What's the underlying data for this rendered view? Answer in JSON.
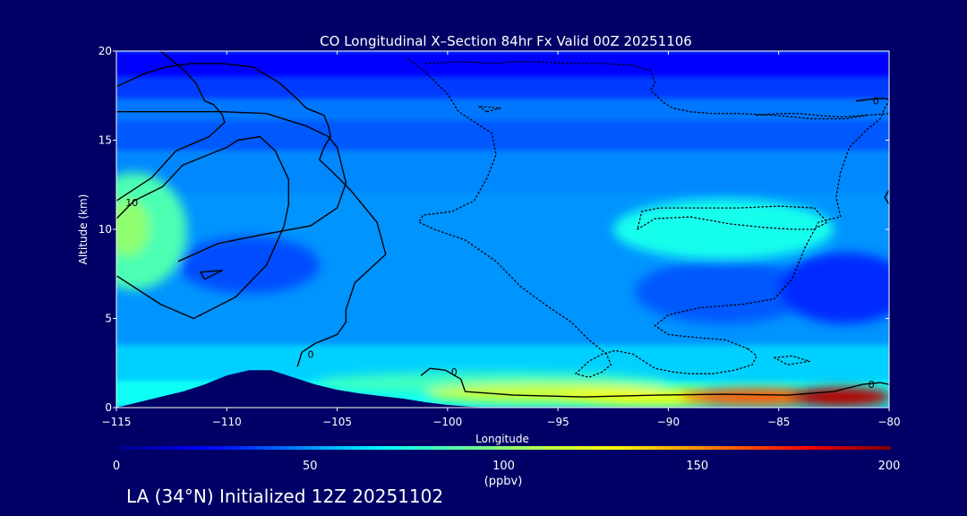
{
  "chart_data": {
    "type": "heatmap",
    "title": "CO Longitudinal X–Section 84hr  Fx Valid 00Z 20251106",
    "xlabel": "Longitude",
    "ylabel": "Altitude (km)",
    "xlim": [
      -115,
      -80
    ],
    "ylim": [
      0,
      20
    ],
    "x_ticks": [
      -115,
      -110,
      -105,
      -100,
      -95,
      -90,
      -85,
      -80
    ],
    "x_tick_labels": [
      "−115",
      "−110",
      "−105",
      "−100",
      "−95",
      "−90",
      "−85",
      "−80"
    ],
    "y_ticks": [
      0,
      5,
      10,
      15,
      20
    ],
    "y_tick_labels": [
      "0",
      "5",
      "10",
      "15",
      "20"
    ],
    "colorbar": {
      "min": 0,
      "max": 200,
      "ticks": [
        0,
        50,
        100,
        150,
        200
      ],
      "tick_labels": [
        "0",
        "50",
        "100",
        "150",
        "200"
      ],
      "label": "(ppbv)"
    },
    "contour_labels": [
      {
        "lon": -114.3,
        "alt": 11.5,
        "text": "10"
      },
      {
        "lon": -106.2,
        "alt": 3.0,
        "text": "0"
      },
      {
        "lon": -99.7,
        "alt": 2.0,
        "text": "0"
      },
      {
        "lon": -80.8,
        "alt": 1.3,
        "text": "0"
      },
      {
        "lon": -80.6,
        "alt": 17.2,
        "text": "0"
      }
    ],
    "terrain": {
      "lon": [
        -115,
        -114,
        -113,
        -112,
        -111,
        -110,
        -109,
        -108,
        -107,
        -106,
        -105,
        -104,
        -103,
        -102,
        -101,
        -100,
        -99,
        -98,
        -97,
        -96,
        -95,
        -80
      ],
      "alt": [
        0,
        0.3,
        0.6,
        0.9,
        1.3,
        1.8,
        2.1,
        2.1,
        1.7,
        1.3,
        1.0,
        0.8,
        0.65,
        0.5,
        0.3,
        0.15,
        0.05,
        0,
        0,
        0,
        0,
        0
      ]
    },
    "bands": [
      {
        "alt": [
          18.5,
          20
        ],
        "value": 25
      },
      {
        "alt": [
          17.3,
          18.5
        ],
        "value": 35
      },
      {
        "alt": [
          16.1,
          17.3
        ],
        "value": 45
      },
      {
        "alt": [
          14.4,
          16.1
        ],
        "value": 40
      },
      {
        "alt": [
          12.0,
          14.4
        ],
        "value": 48
      },
      {
        "alt": [
          3.5,
          12.0
        ],
        "value": 50
      },
      {
        "alt": [
          1.5,
          3.5
        ],
        "value": 60
      },
      {
        "alt": [
          0,
          1.5
        ],
        "value": 70
      }
    ],
    "blobs": [
      {
        "lon": -114.2,
        "alt": 9.9,
        "rlon": 2.4,
        "ralt": 3.3,
        "value": 85
      },
      {
        "lon": -114.5,
        "alt": 10.1,
        "rlon": 1.0,
        "ralt": 1.6,
        "value": 100
      },
      {
        "lon": -109.0,
        "alt": 8.0,
        "rlon": 3.2,
        "ralt": 1.6,
        "value": 38
      },
      {
        "lon": -87.5,
        "alt": 10.0,
        "rlon": 5.0,
        "ralt": 1.7,
        "value": 72
      },
      {
        "lon": -87.5,
        "alt": 6.5,
        "rlon": 4.0,
        "ralt": 1.8,
        "value": 40
      },
      {
        "lon": -82.0,
        "alt": 6.7,
        "rlon": 3.0,
        "ralt": 2.0,
        "value": 32
      },
      {
        "lon": -98.0,
        "alt": 1.4,
        "rlon": 8.0,
        "ralt": 0.6,
        "value": 82
      },
      {
        "lon": -95.5,
        "alt": 0.8,
        "rlon": 5.5,
        "ralt": 0.55,
        "value": 115
      },
      {
        "lon": -90.5,
        "alt": 0.6,
        "rlon": 4.5,
        "ralt": 0.5,
        "value": 125
      },
      {
        "lon": -86.0,
        "alt": 0.6,
        "rlon": 3.5,
        "ralt": 0.5,
        "value": 160
      },
      {
        "lon": -82.2,
        "alt": 0.6,
        "rlon": 2.3,
        "ralt": 0.55,
        "value": 190
      }
    ],
    "solid_contours": [
      {
        "lon": [
          -113.0,
          -112.0,
          -111.4,
          -111.2,
          -111.0,
          -110.6,
          -110.2,
          -110.1,
          -110.8,
          -112.3,
          -113.4,
          -115.0
        ],
        "alt": [
          20.0,
          19.0,
          18.2,
          17.7,
          17.2,
          17.0,
          16.4,
          16.0,
          15.2,
          14.4,
          12.9,
          11.6
        ]
      },
      {
        "lon": [
          -115.0,
          -113.8,
          -112.8,
          -111.6,
          -110.2,
          -108.8,
          -107.6,
          -106.8,
          -106.4,
          -106.0,
          -105.6,
          -105.4,
          -105.3,
          -105.6,
          -105.8,
          -105.2,
          -104.4,
          -103.2,
          -102.8,
          -104.2,
          -104.6,
          -104.6,
          -105.0,
          -106.0,
          -106.6,
          -106.8
        ],
        "alt": [
          18.0,
          18.7,
          19.1,
          19.3,
          19.3,
          19.1,
          18.2,
          17.3,
          16.8,
          16.6,
          16.4,
          15.8,
          15.2,
          14.6,
          13.9,
          13.2,
          12.2,
          10.4,
          8.6,
          7.0,
          5.5,
          4.8,
          4.1,
          3.6,
          3.1,
          2.3
        ]
      },
      {
        "lon": [
          -115.0,
          -112.5,
          -110.2,
          -108.2,
          -107.2,
          -106.4,
          -105.4,
          -105.0,
          -104.6,
          -105.0,
          -106.2,
          -108.4,
          -110.4,
          -112.2
        ],
        "alt": [
          16.6,
          16.6,
          16.6,
          16.5,
          16.1,
          15.8,
          15.2,
          14.6,
          12.6,
          11.2,
          10.2,
          9.7,
          9.2,
          8.2
        ]
      },
      {
        "lon": [
          -115.0,
          -114.2,
          -112.9,
          -112.0,
          -111.2,
          -110.0,
          -109.5,
          -108.5,
          -107.8,
          -107.2,
          -107.2,
          -107.4,
          -108.2,
          -109.6,
          -111.5,
          -113.0,
          -115.0
        ],
        "alt": [
          10.6,
          11.6,
          12.4,
          13.6,
          14.0,
          14.6,
          15.0,
          15.2,
          14.4,
          12.8,
          11.4,
          10.2,
          8.0,
          6.2,
          5.0,
          5.8,
          7.4
        ]
      },
      {
        "lon": [
          -111.0,
          -110.2,
          -111.2,
          -111.0
        ],
        "alt": [
          7.2,
          7.7,
          7.6,
          7.2
        ]
      },
      {
        "lon": [
          -101.2,
          -100.8,
          -100.1,
          -99.4,
          -99.2,
          -97.0,
          -93.8,
          -90.5,
          -87.5,
          -84.6,
          -82.5,
          -81.2,
          -80.4,
          -80.0
        ],
        "alt": [
          1.8,
          2.2,
          2.1,
          1.6,
          0.9,
          0.7,
          0.6,
          0.7,
          0.75,
          0.7,
          0.9,
          1.3,
          1.4,
          1.3
        ]
      },
      {
        "lon": [
          -81.5,
          -80.8,
          -80.3,
          -80.0
        ],
        "alt": [
          17.2,
          17.3,
          17.35,
          17.3
        ]
      },
      {
        "lon": [
          -80.0,
          -80.2,
          -80.0
        ],
        "alt": [
          12.2,
          11.8,
          11.4
        ]
      }
    ],
    "dotted_contours": [
      {
        "lon": [
          -101.0,
          -99.4,
          -97.8,
          -97.0,
          -96.0,
          -94.5,
          -93.0,
          -91.6,
          -90.8,
          -90.6,
          -90.8,
          -90.2,
          -89.8,
          -89.0,
          -88.0,
          -86.8,
          -85.2,
          -83.5,
          -82.0,
          -81.0,
          -80.0
        ],
        "alt": [
          19.3,
          19.4,
          19.3,
          19.4,
          19.4,
          19.3,
          19.3,
          19.2,
          18.9,
          18.2,
          17.8,
          17.1,
          16.8,
          16.6,
          16.5,
          16.5,
          16.4,
          16.2,
          16.2,
          16.4,
          16.5
        ]
      },
      {
        "lon": [
          -101.8,
          -101.0,
          -100.0,
          -99.5,
          -99.0,
          -98.0,
          -97.8,
          -98.2,
          -98.8,
          -99.8,
          -101.1,
          -101.3,
          -100.6,
          -99.2,
          -97.8,
          -96.7,
          -95.6,
          -94.4,
          -93.6,
          -92.8,
          -92.6,
          -93.0,
          -93.6,
          -94.2,
          -93.6,
          -93.0,
          -92.4,
          -91.6,
          -90.6,
          -89.8,
          -89.0,
          -88.0,
          -87.0,
          -86.2,
          -86.0,
          -86.4
        ],
        "alt": [
          19.6,
          18.8,
          17.6,
          16.6,
          16.2,
          15.4,
          14.2,
          12.9,
          11.6,
          11.0,
          10.8,
          10.4,
          10.0,
          9.4,
          8.2,
          6.8,
          5.8,
          4.8,
          3.8,
          3.0,
          2.4,
          2.0,
          1.7,
          1.9,
          2.6,
          3.0,
          3.2,
          3.0,
          2.2,
          2.0,
          1.9,
          1.9,
          2.1,
          2.4,
          2.9,
          3.3
        ]
      },
      {
        "lon": [
          -86.4,
          -87.4,
          -88.4,
          -89.3,
          -90.0,
          -90.6,
          -90.0,
          -88.6,
          -86.6,
          -85.2,
          -84.4,
          -83.8,
          -83.2,
          -82.6,
          -82.2,
          -82.4,
          -82.2,
          -81.8,
          -81.0,
          -80.4,
          -80.2,
          -80.0
        ],
        "alt": [
          3.3,
          3.8,
          3.9,
          4.0,
          4.1,
          4.6,
          5.2,
          5.6,
          5.8,
          6.1,
          7.2,
          9.0,
          10.4,
          10.6,
          10.7,
          11.8,
          13.2,
          14.6,
          15.6,
          16.2,
          16.8,
          17.2
        ]
      },
      {
        "lon": [
          -91.4,
          -90.6,
          -89.0,
          -87.2,
          -85.6,
          -84.3,
          -83.4,
          -82.8,
          -83.4,
          -85.0,
          -86.8,
          -88.8,
          -90.4,
          -91.2,
          -91.4
        ],
        "alt": [
          10.0,
          10.6,
          10.7,
          10.3,
          10.1,
          10.0,
          10.0,
          10.4,
          11.2,
          11.3,
          11.2,
          11.2,
          11.2,
          11.0,
          10.0
        ]
      },
      {
        "lon": [
          -98.2,
          -97.6,
          -98.6,
          -98.2
        ],
        "alt": [
          16.6,
          16.8,
          16.9,
          16.6
        ]
      },
      {
        "lon": [
          -85.2,
          -84.4,
          -83.6,
          -84.6,
          -85.2
        ],
        "alt": [
          2.8,
          2.9,
          2.6,
          2.4,
          2.8
        ]
      },
      {
        "lon": [
          -86.0,
          -85.0,
          -84.0,
          -83.4,
          -82.2,
          -81.0
        ],
        "alt": [
          16.4,
          16.5,
          16.5,
          16.4,
          16.3,
          16.4
        ]
      }
    ]
  },
  "footer": {
    "caption": "LA (34°N) Initialized 12Z 20251102"
  },
  "colors": {
    "background": "#000066",
    "terrain": "#000066",
    "text": "#ffffff",
    "contour": "#000000"
  }
}
